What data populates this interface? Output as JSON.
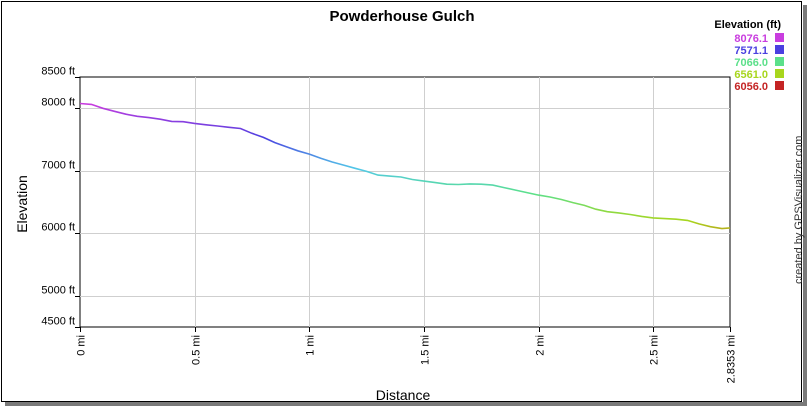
{
  "chart_data": {
    "type": "line",
    "title": "Powderhouse Gulch",
    "xlabel": "Distance",
    "ylabel": "Elevation",
    "credit": "created by GPSVisualizer.com",
    "xlim": [
      0,
      2.8353
    ],
    "ylim": [
      4500,
      8500
    ],
    "x_ticks": [
      {
        "value": 0,
        "label": "0 mi"
      },
      {
        "value": 0.5,
        "label": "0.5 mi"
      },
      {
        "value": 1,
        "label": "1 mi"
      },
      {
        "value": 1.5,
        "label": "1.5 mi"
      },
      {
        "value": 2,
        "label": "2 mi"
      },
      {
        "value": 2.5,
        "label": "2.5 mi"
      },
      {
        "value": 2.8353,
        "label": "2.8353 mi"
      }
    ],
    "y_ticks": [
      {
        "value": 8500,
        "label": "8500 ft"
      },
      {
        "value": 8000,
        "label": "8000 ft"
      },
      {
        "value": 7000,
        "label": "7000 ft"
      },
      {
        "value": 6000,
        "label": "6000 ft"
      },
      {
        "value": 5000,
        "label": "5000 ft"
      },
      {
        "value": 4500,
        "label": "4500 ft"
      }
    ],
    "legend": {
      "title": "Elevation (ft)",
      "position": "top-right",
      "entries": [
        {
          "label": "8076.1",
          "color": "#c93ddf"
        },
        {
          "label": "7571.1",
          "color": "#4a40e0"
        },
        {
          "label": "7066.0",
          "color": "#5be08a"
        },
        {
          "label": "6561.0",
          "color": "#a8d61e"
        },
        {
          "label": "6056.0",
          "color": "#c42424"
        }
      ]
    },
    "grid": true,
    "series": [
      {
        "x": [
          0,
          0.05,
          0.1,
          0.15,
          0.2,
          0.25,
          0.3,
          0.35,
          0.4,
          0.45,
          0.5,
          0.55,
          0.6,
          0.65,
          0.7,
          0.75,
          0.8,
          0.85,
          0.9,
          0.95,
          1.0,
          1.05,
          1.1,
          1.15,
          1.2,
          1.25,
          1.3,
          1.35,
          1.4,
          1.45,
          1.5,
          1.55,
          1.6,
          1.65,
          1.7,
          1.75,
          1.8,
          1.85,
          1.9,
          1.95,
          2.0,
          2.05,
          2.1,
          2.15,
          2.2,
          2.25,
          2.3,
          2.35,
          2.4,
          2.45,
          2.5,
          2.55,
          2.6,
          2.65,
          2.7,
          2.75,
          2.8,
          2.8353
        ],
        "y": [
          8076,
          8062,
          8000,
          7952,
          7905,
          7872,
          7850,
          7825,
          7790,
          7785,
          7758,
          7735,
          7716,
          7696,
          7676,
          7600,
          7533,
          7450,
          7383,
          7320,
          7266,
          7200,
          7140,
          7090,
          7040,
          6990,
          6930,
          6915,
          6900,
          6860,
          6835,
          6810,
          6785,
          6780,
          6790,
          6785,
          6770,
          6730,
          6690,
          6650,
          6610,
          6580,
          6540,
          6490,
          6445,
          6385,
          6345,
          6325,
          6300,
          6270,
          6245,
          6235,
          6225,
          6205,
          6150,
          6105,
          6075,
          6085
        ]
      }
    ]
  }
}
